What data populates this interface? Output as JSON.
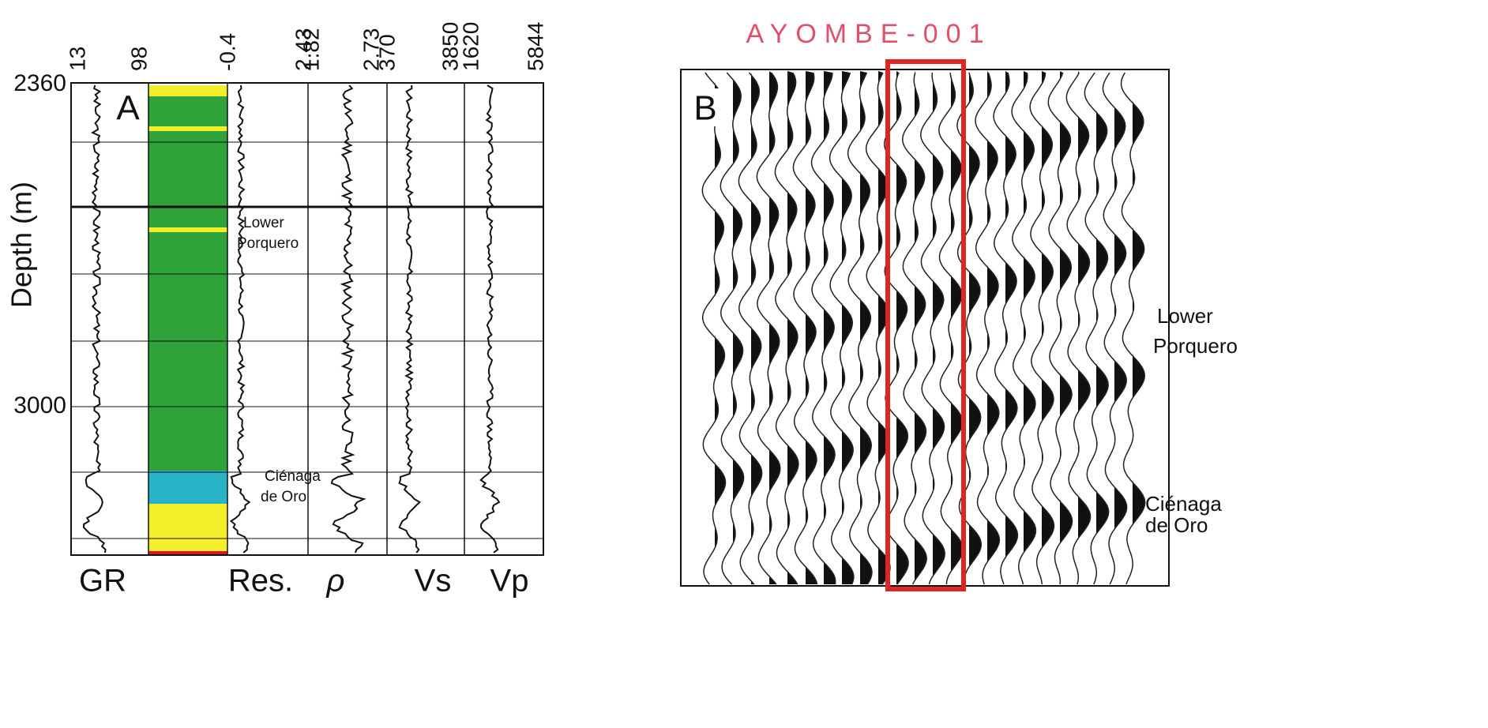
{
  "panel_a": {
    "label": "A",
    "y_axis_title": "Depth (m)",
    "depth_labels": [
      "2360",
      "3000"
    ],
    "track_headers": [
      "13",
      "98",
      "-0.4",
      "2.43",
      "1.82",
      "2.73",
      "370",
      "3850",
      "1620",
      "5844"
    ],
    "track_names": [
      "GR",
      "Res.",
      "ρ",
      "Vs",
      "Vp"
    ],
    "annotations": [
      "Lower",
      "Porquero",
      "Ciénaga",
      "de Oro"
    ]
  },
  "panel_b": {
    "label": "B",
    "well_name": "AYOMBE-001",
    "annotations": [
      "Lower",
      "Porquero",
      "Ciénaga",
      "de Oro"
    ]
  }
}
